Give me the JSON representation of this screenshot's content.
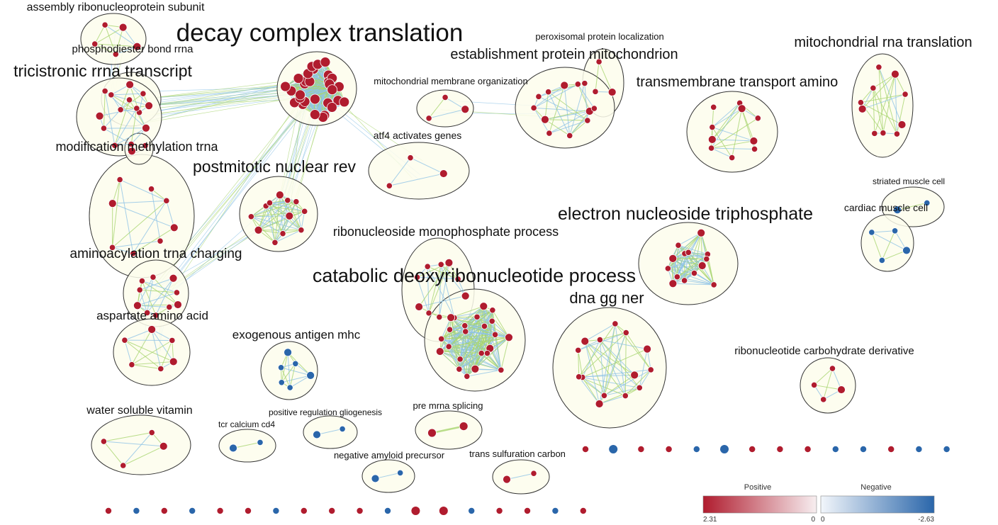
{
  "colors": {
    "positive": "#b01c2e",
    "negative": "#2a66aa",
    "ellipse_fill": "#fdfdec",
    "ellipse_stroke": "#333333",
    "edge_green": "#a8d46f",
    "edge_blue": "#8ec3e6"
  },
  "clusters": [
    {
      "id": "assembly",
      "label": "assembly ribonucleoprotein subunit",
      "color": "positive"
    },
    {
      "id": "phospho",
      "label": "phosphodiester bond rrna",
      "color": "positive"
    },
    {
      "id": "tricistronic",
      "label": "tricistronic rrna transcript",
      "color": "positive"
    },
    {
      "id": "decay",
      "label": "decay complex translation",
      "color": "positive"
    },
    {
      "id": "perox",
      "label": "peroxisomal protein localization",
      "color": "positive"
    },
    {
      "id": "establish",
      "label": "establishment protein mitochondrion",
      "color": "positive"
    },
    {
      "id": "mitomem",
      "label": "mitochondrial membrane organization",
      "color": "positive"
    },
    {
      "id": "mitorna",
      "label": "mitochondrial rna translation",
      "color": "positive"
    },
    {
      "id": "transmem",
      "label": "transmembrane transport amino",
      "color": "positive"
    },
    {
      "id": "atf4",
      "label": "atf4 activates genes",
      "color": "positive"
    },
    {
      "id": "methyl",
      "label": "modification methylation trna",
      "color": "positive"
    },
    {
      "id": "postmitotic",
      "label": "postmitotic nuclear rev",
      "color": "positive"
    },
    {
      "id": "striated",
      "label": "striated muscle cell",
      "color": "negative"
    },
    {
      "id": "cardiac",
      "label": "cardiac muscle cell",
      "color": "negative"
    },
    {
      "id": "electron",
      "label": "electron nucleoside triphosphate",
      "color": "positive"
    },
    {
      "id": "ribomono",
      "label": "ribonucleoside monophosphate process",
      "color": "positive"
    },
    {
      "id": "aminoacyl",
      "label": "aminoacylation trna charging",
      "color": "positive"
    },
    {
      "id": "catabolic",
      "label": "catabolic deoxyribonucleotide process",
      "color": "positive"
    },
    {
      "id": "dnagg",
      "label": "dna gg ner",
      "color": "positive"
    },
    {
      "id": "aspartate",
      "label": "aspartate amino acid",
      "color": "positive"
    },
    {
      "id": "exogenous",
      "label": "exogenous antigen mhc",
      "color": "negative"
    },
    {
      "id": "ribocarb",
      "label": "ribonucleotide carbohydrate derivative",
      "color": "positive"
    },
    {
      "id": "water",
      "label": "water soluble vitamin",
      "color": "positive"
    },
    {
      "id": "tcr",
      "label": "tcr calcium cd4",
      "color": "negative"
    },
    {
      "id": "gliogenesis",
      "label": "positive regulation gliogenesis",
      "color": "negative"
    },
    {
      "id": "premrna",
      "label": "pre mrna splicing",
      "color": "positive"
    },
    {
      "id": "amyloid",
      "label": "negative amyloid precursor",
      "color": "negative"
    },
    {
      "id": "transsulf",
      "label": "trans sulfuration carbon",
      "color": "positive"
    }
  ],
  "singletons_right": [
    "positive",
    "negative",
    "positive",
    "positive",
    "negative",
    "negative",
    "positive",
    "positive",
    "positive",
    "negative",
    "negative",
    "positive",
    "negative",
    "negative"
  ],
  "singletons_bottom": [
    "positive",
    "negative",
    "positive",
    "negative",
    "positive",
    "positive",
    "negative",
    "positive",
    "positive",
    "positive",
    "negative",
    "positive",
    "positive",
    "negative",
    "positive",
    "positive",
    "negative",
    "positive"
  ],
  "legend": {
    "positive_label": "Positive",
    "negative_label": "Negative",
    "max_value": "2.31",
    "zero_left": "0",
    "zero_right": "0",
    "min_value": "-2.63"
  }
}
